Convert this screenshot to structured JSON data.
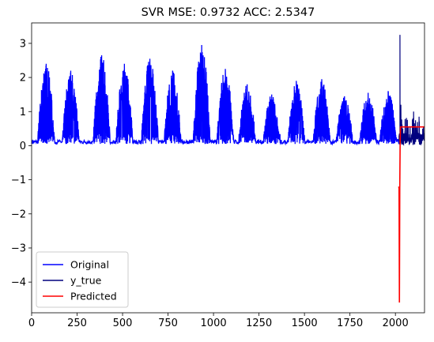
{
  "chart_data": {
    "type": "line",
    "title": "SVR MSE: 0.9732 ACC: 2.5347",
    "xlabel": "",
    "ylabel": "",
    "xlim": [
      0,
      2160
    ],
    "ylim": [
      -4.9,
      3.6
    ],
    "x_ticks": [
      0,
      250,
      500,
      750,
      1000,
      1250,
      1500,
      1750,
      2000
    ],
    "y_ticks": [
      3,
      2,
      1,
      0,
      -1,
      -2,
      -3,
      -4
    ],
    "grid": false,
    "legend_position": "lower-left",
    "series": [
      {
        "name": "Original",
        "color": "#0000ff",
        "note_shape": "daily-cycle",
        "x_range": [
          0,
          2020
        ],
        "cycle_peaks": [
          [
            80,
            2.4
          ],
          [
            215,
            2.2
          ],
          [
            385,
            2.65
          ],
          [
            510,
            2.4
          ],
          [
            650,
            2.55
          ],
          [
            775,
            2.2
          ],
          [
            935,
            2.95
          ],
          [
            1065,
            2.25
          ],
          [
            1185,
            1.8
          ],
          [
            1320,
            1.5
          ],
          [
            1455,
            1.9
          ],
          [
            1595,
            1.95
          ],
          [
            1720,
            1.45
          ],
          [
            1850,
            1.55
          ],
          [
            1960,
            1.6
          ]
        ]
      },
      {
        "name": "y_true",
        "color": "#00007f",
        "x_range": [
          2020,
          2160
        ],
        "spikes": [
          [
            2020,
            0.3
          ],
          [
            2025,
            3.25
          ],
          [
            2030,
            1.2
          ],
          [
            2040,
            0.2
          ],
          [
            2080,
            0.45
          ],
          [
            2100,
            1.0
          ],
          [
            2130,
            0.85
          ],
          [
            2150,
            0.5
          ]
        ]
      },
      {
        "name": "Predicted",
        "color": "#ff0000",
        "points": [
          [
            2018,
            -1.2
          ],
          [
            2020,
            -1.25
          ],
          [
            2022,
            -4.6
          ],
          [
            2024,
            -1.2
          ],
          [
            2026,
            0.1
          ],
          [
            2028,
            0.55
          ],
          [
            2160,
            0.55
          ]
        ]
      }
    ]
  }
}
